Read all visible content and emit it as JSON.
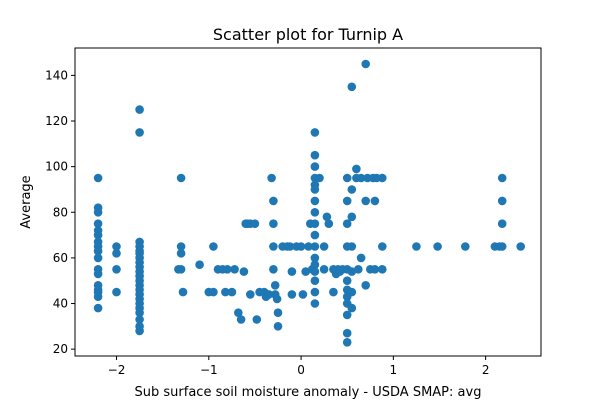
{
  "chart_data": {
    "type": "scatter",
    "title": "Scatter plot for Turnip A",
    "xlabel": "Sub surface soil moisture anomaly - USDA SMAP: avg",
    "ylabel": "Average",
    "xlim": [
      -2.45,
      2.6
    ],
    "ylim": [
      17,
      152
    ],
    "xticks": [
      -2,
      -1,
      0,
      1,
      2
    ],
    "yticks": [
      20,
      40,
      60,
      80,
      100,
      120,
      140
    ],
    "xtick_labels": [
      "−2",
      "−1",
      "0",
      "1",
      "2"
    ],
    "ytick_labels": [
      "20",
      "40",
      "60",
      "80",
      "100",
      "120",
      "140"
    ],
    "grid": false,
    "legend": "none",
    "marker_color": "#1f77b4",
    "points": [
      [
        -2.2,
        95
      ],
      [
        -2.2,
        82
      ],
      [
        -2.2,
        80
      ],
      [
        -2.2,
        75
      ],
      [
        -2.2,
        72
      ],
      [
        -2.2,
        70
      ],
      [
        -2.2,
        67
      ],
      [
        -2.2,
        65
      ],
      [
        -2.2,
        63
      ],
      [
        -2.2,
        60
      ],
      [
        -2.2,
        55
      ],
      [
        -2.2,
        53
      ],
      [
        -2.2,
        48
      ],
      [
        -2.2,
        46
      ],
      [
        -2.2,
        45
      ],
      [
        -2.2,
        43
      ],
      [
        -2.2,
        38
      ],
      [
        -2.0,
        65
      ],
      [
        -2.0,
        62
      ],
      [
        -2.0,
        55
      ],
      [
        -2.0,
        45
      ],
      [
        -1.75,
        125
      ],
      [
        -1.75,
        115
      ],
      [
        -1.75,
        67
      ],
      [
        -1.75,
        65
      ],
      [
        -1.75,
        63
      ],
      [
        -1.75,
        62
      ],
      [
        -1.75,
        60
      ],
      [
        -1.75,
        58
      ],
      [
        -1.75,
        56
      ],
      [
        -1.75,
        54
      ],
      [
        -1.75,
        52
      ],
      [
        -1.75,
        50
      ],
      [
        -1.75,
        48
      ],
      [
        -1.75,
        46
      ],
      [
        -1.75,
        44
      ],
      [
        -1.75,
        42
      ],
      [
        -1.75,
        40
      ],
      [
        -1.75,
        38
      ],
      [
        -1.75,
        36
      ],
      [
        -1.75,
        33
      ],
      [
        -1.75,
        30
      ],
      [
        -1.75,
        28
      ],
      [
        -1.3,
        95
      ],
      [
        -1.3,
        65
      ],
      [
        -1.3,
        62
      ],
      [
        -1.3,
        55
      ],
      [
        -1.28,
        45
      ],
      [
        -1.33,
        55
      ],
      [
        -1.1,
        57
      ],
      [
        -1.0,
        45
      ],
      [
        -0.95,
        65
      ],
      [
        -0.95,
        45
      ],
      [
        -0.9,
        55
      ],
      [
        -0.85,
        55
      ],
      [
        -0.82,
        45
      ],
      [
        -0.8,
        55
      ],
      [
        -0.75,
        45
      ],
      [
        -0.72,
        55
      ],
      [
        -0.68,
        36
      ],
      [
        -0.65,
        33
      ],
      [
        -0.62,
        54
      ],
      [
        -0.6,
        75
      ],
      [
        -0.58,
        75
      ],
      [
        -0.55,
        75
      ],
      [
        -0.55,
        44
      ],
      [
        -0.5,
        75
      ],
      [
        -0.48,
        33
      ],
      [
        -0.45,
        45
      ],
      [
        -0.4,
        45
      ],
      [
        -0.38,
        43
      ],
      [
        -0.35,
        44
      ],
      [
        -0.32,
        95
      ],
      [
        -0.3,
        85
      ],
      [
        -0.3,
        75
      ],
      [
        -0.3,
        65
      ],
      [
        -0.3,
        55
      ],
      [
        -0.28,
        48
      ],
      [
        -0.28,
        44
      ],
      [
        -0.26,
        42
      ],
      [
        -0.25,
        36
      ],
      [
        -0.25,
        30
      ],
      [
        -0.2,
        65
      ],
      [
        -0.15,
        65
      ],
      [
        -0.12,
        65
      ],
      [
        -0.1,
        44
      ],
      [
        -0.1,
        54
      ],
      [
        -0.05,
        65
      ],
      [
        0.0,
        65
      ],
      [
        0.02,
        44
      ],
      [
        0.05,
        54
      ],
      [
        0.08,
        65
      ],
      [
        0.1,
        75
      ],
      [
        0.12,
        55
      ],
      [
        0.15,
        115
      ],
      [
        0.15,
        105
      ],
      [
        0.15,
        100
      ],
      [
        0.15,
        95
      ],
      [
        0.15,
        92
      ],
      [
        0.15,
        90
      ],
      [
        0.15,
        85
      ],
      [
        0.15,
        80
      ],
      [
        0.15,
        75
      ],
      [
        0.15,
        70
      ],
      [
        0.15,
        65
      ],
      [
        0.15,
        60
      ],
      [
        0.15,
        57
      ],
      [
        0.15,
        54
      ],
      [
        0.15,
        50
      ],
      [
        0.15,
        45
      ],
      [
        0.15,
        40
      ],
      [
        0.2,
        95
      ],
      [
        0.25,
        65
      ],
      [
        0.25,
        55
      ],
      [
        0.28,
        78
      ],
      [
        0.3,
        75
      ],
      [
        0.35,
        55
      ],
      [
        0.35,
        45
      ],
      [
        0.38,
        53
      ],
      [
        0.4,
        55
      ],
      [
        0.42,
        54
      ],
      [
        0.45,
        55
      ],
      [
        0.5,
        95
      ],
      [
        0.5,
        85
      ],
      [
        0.5,
        75
      ],
      [
        0.5,
        65
      ],
      [
        0.5,
        55
      ],
      [
        0.5,
        50
      ],
      [
        0.5,
        46
      ],
      [
        0.5,
        43
      ],
      [
        0.5,
        40
      ],
      [
        0.5,
        35
      ],
      [
        0.5,
        27
      ],
      [
        0.5,
        23
      ],
      [
        0.55,
        135
      ],
      [
        0.55,
        90
      ],
      [
        0.55,
        78
      ],
      [
        0.55,
        65
      ],
      [
        0.55,
        54
      ],
      [
        0.55,
        45
      ],
      [
        0.55,
        38
      ],
      [
        0.6,
        99
      ],
      [
        0.6,
        95
      ],
      [
        0.62,
        55
      ],
      [
        0.65,
        95
      ],
      [
        0.65,
        60
      ],
      [
        0.7,
        145
      ],
      [
        0.7,
        85
      ],
      [
        0.7,
        48
      ],
      [
        0.72,
        95
      ],
      [
        0.75,
        55
      ],
      [
        0.78,
        95
      ],
      [
        0.8,
        55
      ],
      [
        0.8,
        85
      ],
      [
        0.82,
        95
      ],
      [
        0.88,
        95
      ],
      [
        0.88,
        65
      ],
      [
        0.88,
        55
      ],
      [
        1.25,
        65
      ],
      [
        1.48,
        65
      ],
      [
        1.78,
        65
      ],
      [
        2.1,
        65
      ],
      [
        2.15,
        65
      ],
      [
        2.18,
        95
      ],
      [
        2.18,
        85
      ],
      [
        2.18,
        75
      ],
      [
        2.18,
        65
      ],
      [
        2.38,
        65
      ]
    ]
  }
}
